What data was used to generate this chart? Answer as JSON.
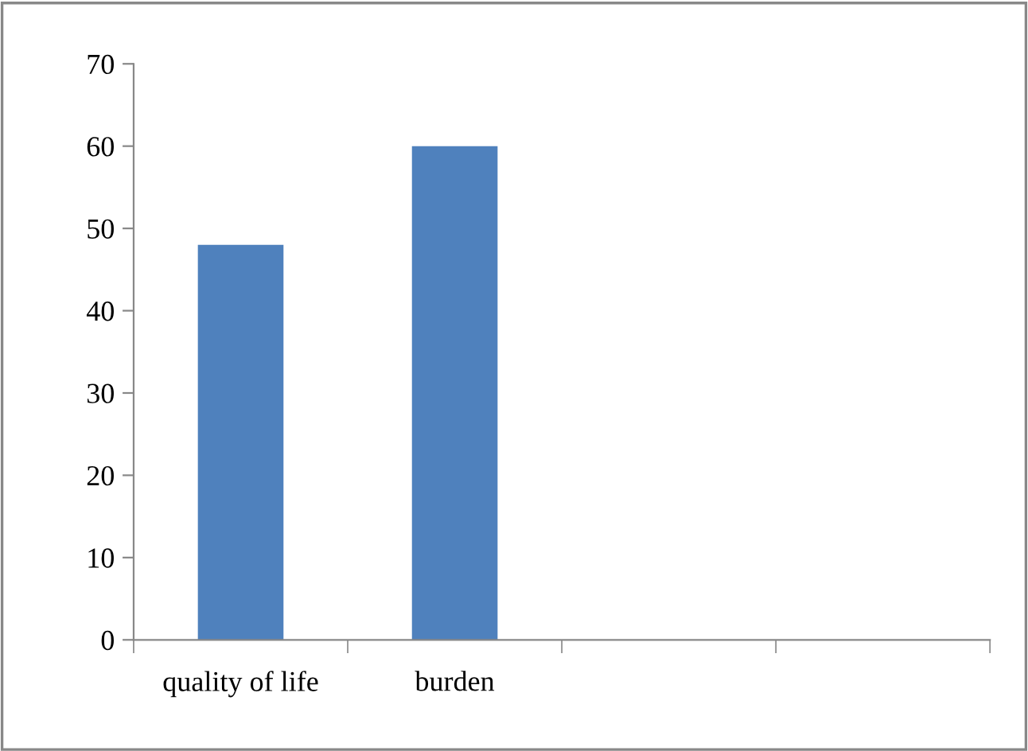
{
  "chart_data": {
    "type": "bar",
    "categories": [
      "quality of life",
      "burden",
      null,
      null
    ],
    "values": [
      48,
      60,
      null,
      null
    ],
    "color": "#4f81bd",
    "ylim": [
      0,
      70
    ],
    "yticks": [
      0,
      10,
      20,
      30,
      40,
      50,
      60,
      70
    ],
    "grid": false,
    "legend": false
  }
}
